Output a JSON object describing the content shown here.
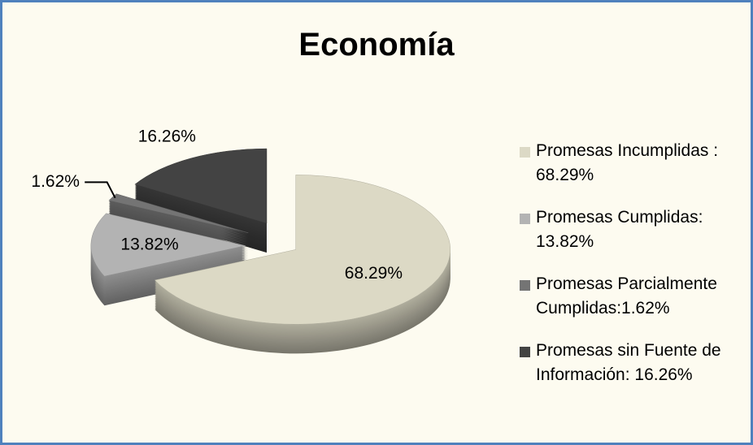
{
  "chart_data": {
    "type": "pie3d",
    "title": "Economía",
    "categories": [
      "Promesas Incumplidas : 68.29%",
      "Promesas Cumplidas: 13.82%",
      "Promesas Parcialmente Cumplidas:1.62%",
      "Promesas sin Fuente de Información: 16.26%"
    ],
    "values": [
      68.29,
      13.82,
      1.62,
      16.26
    ],
    "value_labels": [
      "68.29%",
      "13.82%",
      "1.62%",
      "16.26%"
    ],
    "colors": [
      "#dcd9c5",
      "#b3b3b3",
      "#747474",
      "#434343"
    ],
    "legend": "right"
  }
}
